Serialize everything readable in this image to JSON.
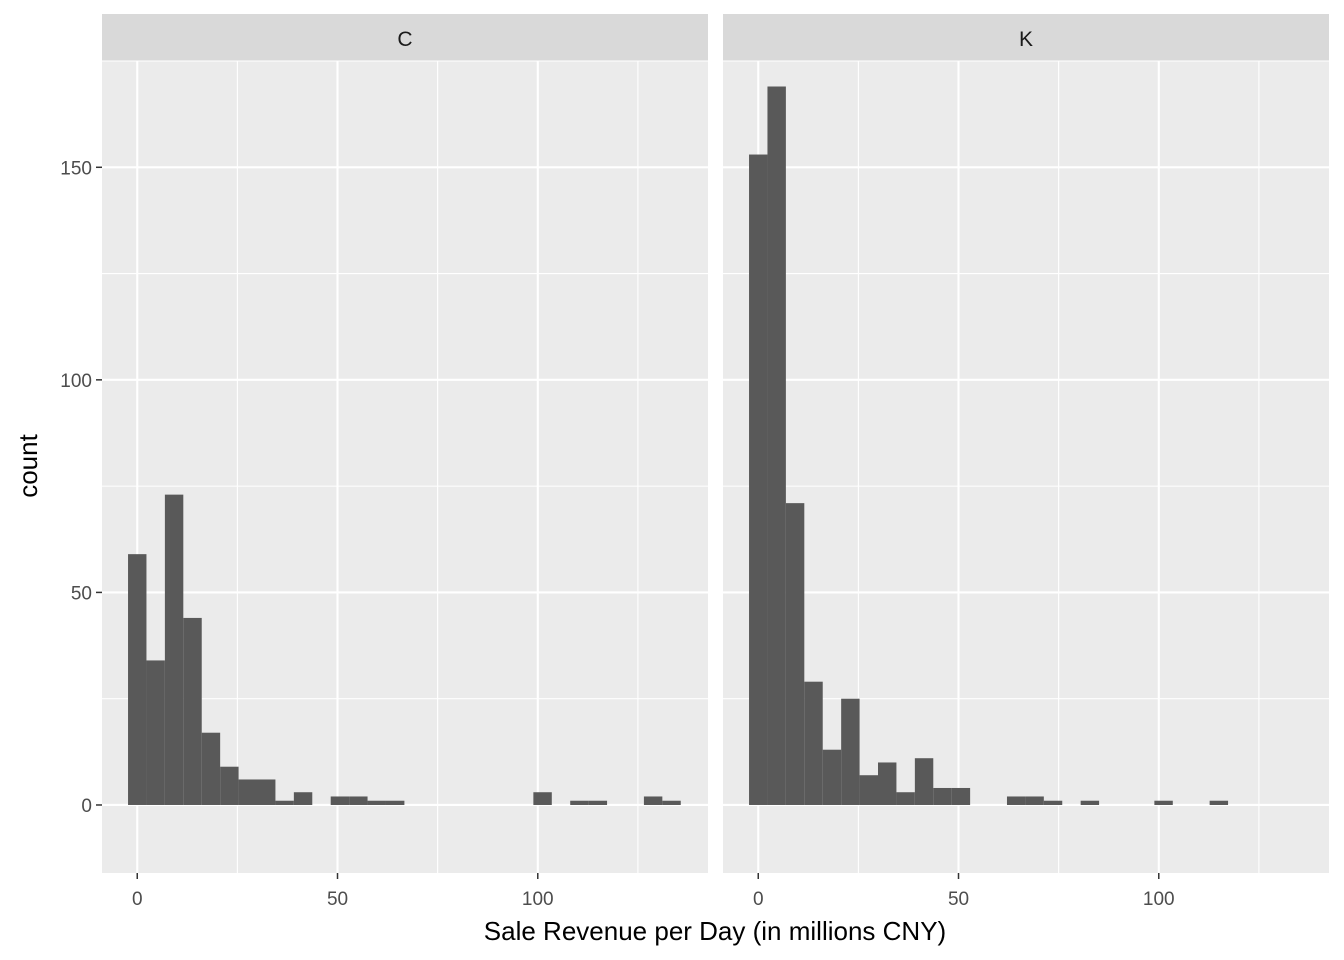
{
  "chart_data": {
    "type": "bar",
    "subtype": "faceted-histogram",
    "xlabel": "Sale Revenue per Day (in millions CNY)",
    "ylabel": "count",
    "xlim": [
      -8.8,
      142.5
    ],
    "ylim": [
      -16,
      175
    ],
    "x_ticks": [
      0,
      50,
      100
    ],
    "y_ticks": [
      0,
      50,
      100,
      150
    ],
    "bin_width": 4.6,
    "grid": true,
    "facets": [
      {
        "label": "C",
        "bins": [
          {
            "start": -2.3,
            "count": 59
          },
          {
            "start": 2.3,
            "count": 34
          },
          {
            "start": 6.9,
            "count": 73
          },
          {
            "start": 11.5,
            "count": 44
          },
          {
            "start": 16.1,
            "count": 17
          },
          {
            "start": 20.7,
            "count": 9
          },
          {
            "start": 25.3,
            "count": 6
          },
          {
            "start": 29.9,
            "count": 6
          },
          {
            "start": 34.5,
            "count": 1
          },
          {
            "start": 39.1,
            "count": 3
          },
          {
            "start": 48.3,
            "count": 2
          },
          {
            "start": 52.9,
            "count": 2
          },
          {
            "start": 57.5,
            "count": 1
          },
          {
            "start": 62.1,
            "count": 1
          },
          {
            "start": 98.9,
            "count": 3
          },
          {
            "start": 108.1,
            "count": 1
          },
          {
            "start": 112.7,
            "count": 1
          },
          {
            "start": 126.5,
            "count": 2
          },
          {
            "start": 131.1,
            "count": 1
          }
        ]
      },
      {
        "label": "K",
        "bins": [
          {
            "start": -2.3,
            "count": 153
          },
          {
            "start": 2.3,
            "count": 169
          },
          {
            "start": 6.9,
            "count": 71
          },
          {
            "start": 11.5,
            "count": 29
          },
          {
            "start": 16.1,
            "count": 13
          },
          {
            "start": 20.7,
            "count": 25
          },
          {
            "start": 25.3,
            "count": 7
          },
          {
            "start": 29.9,
            "count": 10
          },
          {
            "start": 34.5,
            "count": 3
          },
          {
            "start": 39.1,
            "count": 11
          },
          {
            "start": 43.7,
            "count": 4
          },
          {
            "start": 48.3,
            "count": 4
          },
          {
            "start": 62.1,
            "count": 2
          },
          {
            "start": 66.7,
            "count": 2
          },
          {
            "start": 71.3,
            "count": 1
          },
          {
            "start": 80.5,
            "count": 1
          },
          {
            "start": 98.9,
            "count": 1
          },
          {
            "start": 112.7,
            "count": 1
          }
        ]
      }
    ]
  }
}
